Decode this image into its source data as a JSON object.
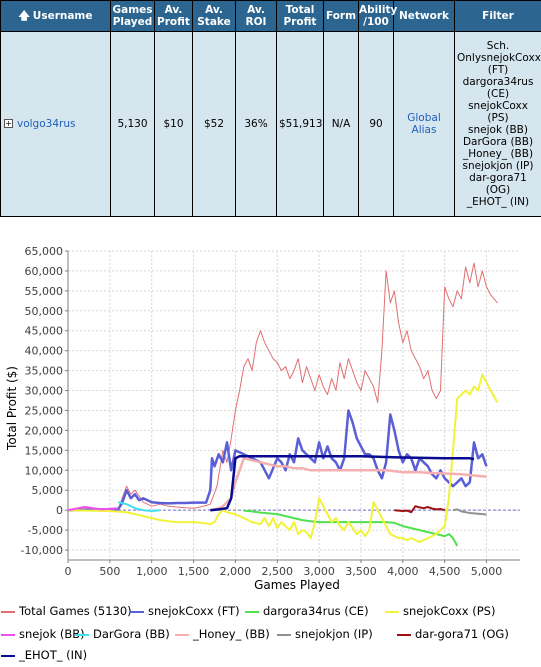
{
  "table": {
    "headers": {
      "username": "Username",
      "games_played": [
        "Games",
        "Played"
      ],
      "av_profit": [
        "Av.",
        "Profit"
      ],
      "av_stake": [
        "Av.",
        "Stake"
      ],
      "av_roi": [
        "Av.",
        "ROI"
      ],
      "total_profit": [
        "Total",
        "Profit"
      ],
      "form": "Form",
      "ability": [
        "Ability",
        "/100"
      ],
      "network": "Network",
      "filter": "Filter"
    },
    "row": {
      "username": "volgo34rus",
      "games_played": "5,130",
      "av_profit": "$10",
      "av_stake": "$52",
      "av_roi": "36%",
      "total_profit": "$51,913",
      "form": "N/A",
      "ability": "90",
      "network": "Global Alias",
      "filter_lines": [
        "Sch.",
        "OnlysnejokCoxx",
        "(FT)",
        "dargora34rus",
        "(CE)",
        "snejokCoxx",
        "(PS)",
        "snejok (BB)",
        "DarGora (BB)",
        "_Honey_ (BB)",
        "snejokjon (IP)",
        "dar-gora71",
        "(OG)",
        "_EHOT_ (IN)"
      ]
    },
    "colors": {
      "header_bg": "#2b6590",
      "row_bg": "#d6e6ee",
      "link": "#1f5fb8"
    }
  },
  "chart_data": {
    "type": "line",
    "xlabel": "Games Played",
    "ylabel": "Total Profit ($)",
    "xlim": [
      0,
      5400
    ],
    "ylim": [
      -12500,
      65000
    ],
    "xticks": [
      0,
      500,
      1000,
      1500,
      2000,
      2500,
      3000,
      3500,
      4000,
      4500,
      5000
    ],
    "xtick_labels": [
      "0",
      "500",
      "1,000",
      "1,500",
      "2,000",
      "2,500",
      "3,000",
      "3,500",
      "4,000",
      "4,500",
      "5,000"
    ],
    "yticks": [
      -10000,
      -5000,
      0,
      5000,
      10000,
      15000,
      20000,
      25000,
      30000,
      35000,
      40000,
      45000,
      50000,
      55000,
      60000,
      65000
    ],
    "ytick_labels": [
      "-10,000",
      "-5,000",
      "0",
      "5,000",
      "10,000",
      "15,000",
      "20,000",
      "25,000",
      "30,000",
      "35,000",
      "40,000",
      "45,000",
      "50,000",
      "55,000",
      "60,000",
      "65,000"
    ],
    "grid": true,
    "zero_line": true,
    "legend_position": "bottom",
    "series": [
      {
        "name": "Total Games (5130)",
        "color": "#e07070",
        "width": 1,
        "x": [
          0,
          300,
          600,
          700,
          750,
          800,
          900,
          1000,
          1100,
          1200,
          1300,
          1400,
          1500,
          1600,
          1700,
          1780,
          1850,
          1900,
          1950,
          2000,
          2050,
          2100,
          2150,
          2200,
          2250,
          2300,
          2350,
          2400,
          2450,
          2500,
          2550,
          2600,
          2650,
          2700,
          2750,
          2800,
          2850,
          2900,
          2950,
          3000,
          3050,
          3100,
          3150,
          3200,
          3250,
          3300,
          3350,
          3400,
          3450,
          3500,
          3550,
          3600,
          3650,
          3700,
          3750,
          3800,
          3850,
          3900,
          3950,
          4000,
          4050,
          4100,
          4150,
          4200,
          4250,
          4300,
          4350,
          4400,
          4450,
          4500,
          4550,
          4600,
          4650,
          4700,
          4750,
          4800,
          4850,
          4900,
          4950,
          5000,
          5050,
          5130
        ],
        "y": [
          0,
          500,
          300,
          6000,
          4000,
          5000,
          2000,
          1000,
          1500,
          1000,
          800,
          600,
          500,
          900,
          1500,
          6000,
          15000,
          12000,
          18000,
          25000,
          30000,
          36000,
          38000,
          35000,
          42000,
          45000,
          42000,
          40000,
          38000,
          37000,
          35000,
          36000,
          33000,
          35000,
          38000,
          32000,
          36000,
          33000,
          30000,
          34000,
          31000,
          29000,
          33000,
          30000,
          37000,
          33000,
          38000,
          35000,
          32000,
          30000,
          35000,
          33000,
          31000,
          27000,
          40000,
          60000,
          52000,
          55000,
          47000,
          42000,
          45000,
          40000,
          38000,
          36000,
          33000,
          35000,
          30000,
          28000,
          30000,
          56000,
          53000,
          51000,
          55000,
          53000,
          61000,
          57000,
          62000,
          56000,
          60000,
          56000,
          54000,
          52000
        ]
      },
      {
        "name": "snejokCoxx (FT)",
        "color": "#5a5fd6",
        "width": 2.5,
        "x": [
          0,
          300,
          600,
          650,
          700,
          750,
          800,
          850,
          900,
          1000,
          1100,
          1200,
          1300,
          1400,
          1500,
          1650,
          1700,
          1720,
          1750,
          1800,
          1850,
          1900,
          1950,
          2000,
          2100,
          2200,
          2300,
          2400,
          2500,
          2550,
          2600,
          2650,
          2700,
          2750,
          2800,
          2900,
          2950,
          3000,
          3050,
          3100,
          3150,
          3200,
          3250,
          3300,
          3350,
          3400,
          3450,
          3500,
          3550,
          3600,
          3650,
          3700,
          3750,
          3800,
          3850,
          3900,
          3950,
          4000,
          4050,
          4100,
          4150,
          4200,
          4250,
          4300,
          4350,
          4400,
          4450,
          4500,
          4550,
          4600,
          4650,
          4700,
          4750,
          4800,
          4850,
          4900,
          4950,
          5000
        ],
        "y": [
          0,
          100,
          200,
          2000,
          5000,
          3000,
          4000,
          2500,
          3000,
          2000,
          1800,
          1700,
          1800,
          1800,
          1900,
          1900,
          5000,
          13000,
          11000,
          14000,
          12000,
          17000,
          10000,
          15000,
          14000,
          13000,
          12000,
          8000,
          13000,
          12000,
          10000,
          14000,
          12000,
          18000,
          15000,
          13000,
          12000,
          17000,
          13000,
          16000,
          13000,
          12000,
          10000,
          13000,
          25000,
          22000,
          18000,
          16000,
          14000,
          14000,
          13000,
          10000,
          8000,
          12000,
          24000,
          20000,
          15000,
          12000,
          14000,
          13000,
          10000,
          13000,
          12000,
          11000,
          9000,
          8000,
          10000,
          8000,
          7000,
          6000,
          7000,
          8000,
          6000,
          7000,
          17000,
          13000,
          14000,
          11000
        ]
      },
      {
        "name": "dargora34rus (CE)",
        "color": "#50e050",
        "width": 2,
        "x": [
          2100,
          2200,
          2300,
          2400,
          2500,
          2600,
          2700,
          2800,
          2900,
          3000,
          3100,
          3200,
          3300,
          3400,
          3500,
          3600,
          3700,
          3800,
          3900,
          4000,
          4100,
          4200,
          4300,
          4400,
          4500,
          4550,
          4600,
          4650
        ],
        "y": [
          -100,
          -300,
          -600,
          -800,
          -1000,
          -1500,
          -2000,
          -2500,
          -2800,
          -3000,
          -3000,
          -3000,
          -3000,
          -3000,
          -3000,
          -3000,
          -3000,
          -3000,
          -3200,
          -4000,
          -4500,
          -5000,
          -5500,
          -6000,
          -6500,
          -6000,
          -7000,
          -9000
        ]
      },
      {
        "name": "snejokCoxx (PS)",
        "color": "#f2f23a",
        "width": 2,
        "x": [
          0,
          500,
          700,
          800,
          900,
          1000,
          1100,
          1200,
          1300,
          1400,
          1500,
          1600,
          1700,
          1750,
          1800,
          1850,
          1900,
          2000,
          2100,
          2200,
          2300,
          2350,
          2400,
          2450,
          2500,
          2550,
          2600,
          2650,
          2700,
          2750,
          2800,
          2850,
          2900,
          2950,
          3000,
          3050,
          3100,
          3150,
          3200,
          3250,
          3300,
          3350,
          3400,
          3450,
          3500,
          3550,
          3600,
          3650,
          3700,
          3750,
          3800,
          3850,
          3900,
          3950,
          4000,
          4050,
          4100,
          4150,
          4200,
          4250,
          4300,
          4350,
          4400,
          4450,
          4500,
          4550,
          4600,
          4650,
          4700,
          4750,
          4800,
          4850,
          4900,
          4950,
          5000,
          5050,
          5130
        ],
        "y": [
          0,
          -200,
          -500,
          -1000,
          -1500,
          -2000,
          -2500,
          -2800,
          -3000,
          -3000,
          -3000,
          -3200,
          -3500,
          -3000,
          -1000,
          0,
          -500,
          -1000,
          -2000,
          -3000,
          -3500,
          -2000,
          -4000,
          -2000,
          -4500,
          -3000,
          -4000,
          -5000,
          -3000,
          -6000,
          -5000,
          -5500,
          -7000,
          -3000,
          3000,
          1000,
          -1000,
          -3000,
          -2000,
          -4000,
          -5000,
          -3000,
          -4500,
          -6000,
          -5000,
          -6500,
          -5000,
          2000,
          0,
          -2000,
          -4000,
          -6000,
          -6500,
          -7000,
          -7000,
          -7500,
          -7000,
          -7500,
          -8000,
          -7500,
          -7000,
          -6500,
          -6000,
          -5000,
          -4000,
          3000,
          15000,
          28000,
          29000,
          30000,
          29000,
          31000,
          30000,
          34000,
          32000,
          30000,
          27000
        ]
      },
      {
        "name": "snejok (BB)",
        "color": "#f04ff0",
        "width": 2,
        "x": [
          0,
          200,
          400,
          600
        ],
        "y": [
          0,
          800,
          200,
          500
        ]
      },
      {
        "name": "DarGora (BB)",
        "color": "#40e0f0",
        "width": 2,
        "x": [
          600,
          700,
          800,
          900,
          1000,
          1100
        ],
        "y": [
          2000,
          1500,
          500,
          0,
          -200,
          0
        ]
      },
      {
        "name": "_Honey_ (BB)",
        "color": "#f4b0b0",
        "width": 2.5,
        "x": [
          1700,
          1800,
          1850,
          1900,
          1950,
          2000,
          2100,
          2200,
          2300,
          2400,
          2500,
          2600,
          2700,
          2800,
          2900,
          3000,
          3100,
          3200,
          3300,
          3400,
          3500,
          3600,
          3700,
          3800,
          3900,
          4000,
          4100,
          4200,
          4300,
          4400,
          4500,
          4600,
          4700,
          4800,
          4900,
          5000
        ],
        "y": [
          0,
          500,
          1000,
          2000,
          3000,
          7000,
          13000,
          12500,
          12000,
          11500,
          11000,
          11000,
          10500,
          10500,
          10000,
          10000,
          10000,
          10000,
          10000,
          10000,
          10000,
          10000,
          10000,
          10000,
          9800,
          9500,
          9500,
          9500,
          9400,
          9300,
          9200,
          9100,
          9000,
          8800,
          8600,
          8400
        ]
      },
      {
        "name": "snejokjon (IP)",
        "color": "#909090",
        "width": 2,
        "x": [
          4600,
          4650,
          4700,
          4750,
          4800,
          4850,
          4900,
          4950,
          5000
        ],
        "y": [
          0,
          200,
          -300,
          -500,
          -700,
          -800,
          -900,
          -1000,
          -1100
        ]
      },
      {
        "name": "dar-gora71 (OG)",
        "color": "#a01010",
        "width": 2,
        "x": [
          3900,
          4000,
          4050,
          4100,
          4150,
          4200,
          4250,
          4300,
          4350,
          4400,
          4450,
          4500
        ],
        "y": [
          0,
          -200,
          -100,
          -500,
          1000,
          700,
          500,
          800,
          400,
          200,
          300,
          0
        ]
      },
      {
        "name": "_EHOT_ (IN)",
        "color": "#0a0a90",
        "width": 2.5,
        "x": [
          1700,
          1800,
          1900,
          1950,
          2000,
          2050,
          2100,
          2500,
          3000,
          3500,
          4000,
          4500,
          4800,
          4850
        ],
        "y": [
          0,
          200,
          500,
          3000,
          13000,
          13500,
          13500,
          13500,
          13500,
          13500,
          13200,
          13000,
          13000,
          12800
        ]
      }
    ]
  },
  "legend": {
    "items": [
      "Total Games (5130)",
      "snejokCoxx (FT)",
      "dargora34rus (CE)",
      "snejokCoxx (PS)",
      "snejok (BB)",
      "DarGora (BB)",
      "_Honey_ (BB)",
      "snejokjon (IP)",
      "dar-gora71 (OG)",
      "_EHOT_ (IN)"
    ]
  }
}
